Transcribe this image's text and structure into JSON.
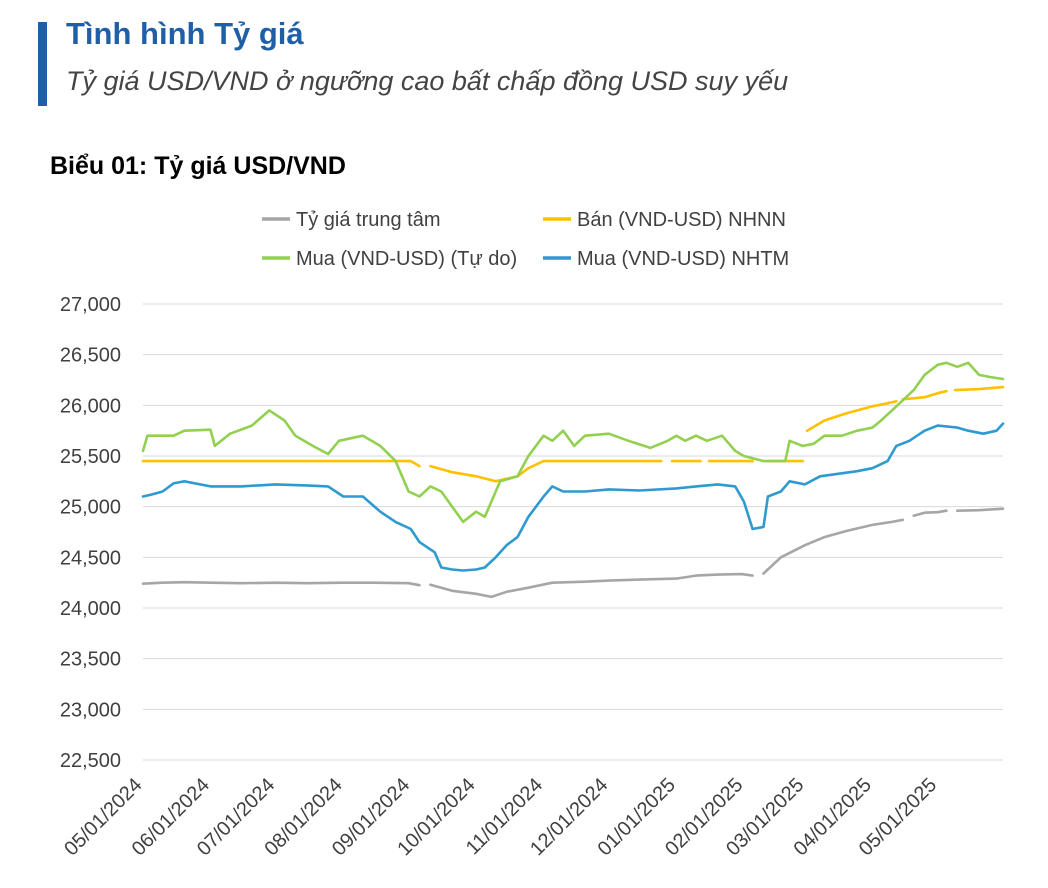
{
  "header": {
    "title": "Tình hình Tỷ giá",
    "subtitle": "Tỷ giá USD/VND ở ngưỡng cao bất chấp đồng USD suy yếu",
    "accent_color": "#1f5fa8"
  },
  "chart_data": {
    "type": "line",
    "title": "Biểu 01: Tỷ giá  USD/VND",
    "ylim": [
      22500,
      27000
    ],
    "y_ticks": [
      22500,
      23000,
      23500,
      24000,
      24500,
      25000,
      25500,
      26000,
      26500,
      27000
    ],
    "y_tick_labels": [
      "22,500",
      "23,000",
      "23,500",
      "24,000",
      "24,500",
      "25,000",
      "25,500",
      "26,000",
      "26,500",
      "27,000"
    ],
    "x_range": [
      "2024-05-01",
      "2025-05-31"
    ],
    "x_ticks": [
      "2024-05-01",
      "2024-06-01",
      "2024-07-01",
      "2024-08-01",
      "2024-09-01",
      "2024-10-01",
      "2024-11-01",
      "2024-12-01",
      "2025-01-01",
      "2025-02-01",
      "2025-03-01",
      "2025-04-01",
      "2025-05-01"
    ],
    "x_tick_labels": [
      "05/01/2024",
      "06/01/2024",
      "07/01/2024",
      "08/01/2024",
      "09/01/2024",
      "10/01/2024",
      "11/01/2024",
      "12/01/2024",
      "01/01/2025",
      "02/01/2025",
      "03/01/2025",
      "04/01/2025",
      "05/01/2025"
    ],
    "grid": "horizontal",
    "legend_position": "top",
    "series": [
      {
        "name": "Tỷ giá trung tâm",
        "color": "#a6a6a6",
        "points": [
          [
            "2024-05-01",
            24240
          ],
          [
            "2024-05-10",
            24250
          ],
          [
            "2024-05-20",
            24255
          ],
          [
            "2024-06-01",
            24250
          ],
          [
            "2024-06-15",
            24245
          ],
          [
            "2024-07-01",
            24250
          ],
          [
            "2024-07-15",
            24245
          ],
          [
            "2024-08-01",
            24250
          ],
          [
            "2024-08-15",
            24250
          ],
          [
            "2024-08-31",
            24245
          ],
          [
            "2024-09-05",
            24225
          ],
          null,
          [
            "2024-09-10",
            24230
          ],
          [
            "2024-09-20",
            24170
          ],
          [
            "2024-10-01",
            24140
          ],
          [
            "2024-10-08",
            24110
          ],
          [
            "2024-10-15",
            24160
          ],
          [
            "2024-10-25",
            24200
          ],
          [
            "2024-11-05",
            24250
          ],
          [
            "2024-11-20",
            24260
          ],
          [
            "2024-12-01",
            24270
          ],
          [
            "2024-12-15",
            24280
          ],
          [
            "2025-01-01",
            24290
          ],
          [
            "2025-01-10",
            24320
          ],
          [
            "2025-01-20",
            24330
          ],
          [
            "2025-01-31",
            24335
          ],
          [
            "2025-02-05",
            24320
          ],
          null,
          [
            "2025-02-10",
            24340
          ],
          [
            "2025-02-18",
            24500
          ],
          [
            "2025-03-01",
            24620
          ],
          [
            "2025-03-10",
            24700
          ],
          [
            "2025-03-20",
            24760
          ],
          [
            "2025-04-01",
            24820
          ],
          [
            "2025-04-10",
            24850
          ],
          [
            "2025-04-15",
            24870
          ],
          null,
          [
            "2025-04-20",
            24910
          ],
          [
            "2025-04-25",
            24940
          ],
          [
            "2025-05-01",
            24945
          ],
          [
            "2025-05-05",
            24960
          ],
          null,
          [
            "2025-05-10",
            24960
          ],
          [
            "2025-05-20",
            24965
          ],
          [
            "2025-05-31",
            24980
          ]
        ]
      },
      {
        "name": "Bán (VND-USD) NHNN",
        "color": "#ffc000",
        "points": [
          [
            "2024-05-01",
            25450
          ],
          [
            "2024-06-01",
            25450
          ],
          [
            "2024-07-01",
            25450
          ],
          [
            "2024-08-01",
            25450
          ],
          [
            "2024-09-01",
            25450
          ],
          [
            "2024-09-05",
            25400
          ],
          null,
          [
            "2024-09-10",
            25400
          ],
          [
            "2024-09-20",
            25340
          ],
          [
            "2024-10-01",
            25300
          ],
          [
            "2024-10-10",
            25250
          ],
          [
            "2024-10-20",
            25300
          ],
          [
            "2024-10-25",
            25380
          ],
          [
            "2024-11-01",
            25450
          ],
          [
            "2024-12-01",
            25450
          ],
          [
            "2024-12-25",
            25450
          ],
          null,
          [
            "2024-12-30",
            25450
          ],
          [
            "2025-01-12",
            25450
          ],
          null,
          [
            "2025-01-16",
            25450
          ],
          [
            "2025-02-05",
            25450
          ],
          null,
          [
            "2025-02-12",
            25450
          ],
          [
            "2025-02-28",
            25450
          ],
          null,
          [
            "2025-03-02",
            25750
          ],
          [
            "2025-03-10",
            25850
          ],
          [
            "2025-03-20",
            25920
          ],
          [
            "2025-04-01",
            25990
          ],
          [
            "2025-04-08",
            26020
          ],
          [
            "2025-04-12",
            26040
          ],
          null,
          [
            "2025-04-15",
            26060
          ],
          [
            "2025-04-25",
            26080
          ],
          [
            "2025-05-01",
            26120
          ],
          [
            "2025-05-05",
            26140
          ],
          null,
          [
            "2025-05-09",
            26150
          ],
          [
            "2025-05-20",
            26160
          ],
          [
            "2025-05-31",
            26180
          ]
        ]
      },
      {
        "name": "Mua (VND-USD) (Tự do)",
        "color": "#92d050",
        "points": [
          [
            "2024-05-01",
            25550
          ],
          [
            "2024-05-03",
            25700
          ],
          [
            "2024-05-15",
            25700
          ],
          [
            "2024-05-20",
            25750
          ],
          [
            "2024-06-01",
            25760
          ],
          [
            "2024-06-03",
            25600
          ],
          [
            "2024-06-10",
            25720
          ],
          [
            "2024-06-20",
            25800
          ],
          [
            "2024-06-28",
            25950
          ],
          [
            "2024-07-05",
            25850
          ],
          [
            "2024-07-10",
            25700
          ],
          [
            "2024-07-18",
            25600
          ],
          [
            "2024-07-25",
            25520
          ],
          [
            "2024-07-30",
            25650
          ],
          [
            "2024-08-10",
            25700
          ],
          [
            "2024-08-18",
            25600
          ],
          [
            "2024-08-25",
            25450
          ],
          [
            "2024-08-31",
            25150
          ],
          [
            "2024-09-05",
            25100
          ],
          [
            "2024-09-10",
            25200
          ],
          [
            "2024-09-15",
            25150
          ],
          [
            "2024-09-20",
            25000
          ],
          [
            "2024-09-25",
            24850
          ],
          [
            "2024-10-01",
            24950
          ],
          [
            "2024-10-05",
            24900
          ],
          [
            "2024-10-08",
            25050
          ],
          [
            "2024-10-12",
            25250
          ],
          [
            "2024-10-20",
            25300
          ],
          [
            "2024-10-25",
            25500
          ],
          [
            "2024-11-01",
            25700
          ],
          [
            "2024-11-05",
            25650
          ],
          [
            "2024-11-10",
            25750
          ],
          [
            "2024-11-15",
            25600
          ],
          [
            "2024-11-20",
            25700
          ],
          [
            "2024-12-01",
            25720
          ],
          [
            "2024-12-10",
            25650
          ],
          [
            "2024-12-20",
            25580
          ],
          [
            "2024-12-28",
            25650
          ],
          [
            "2025-01-01",
            25700
          ],
          [
            "2025-01-05",
            25650
          ],
          [
            "2025-01-10",
            25700
          ],
          [
            "2025-01-15",
            25650
          ],
          [
            "2025-01-22",
            25700
          ],
          [
            "2025-01-28",
            25550
          ],
          [
            "2025-02-01",
            25500
          ],
          [
            "2025-02-10",
            25450
          ],
          [
            "2025-02-20",
            25450
          ],
          [
            "2025-02-22",
            25650
          ],
          [
            "2025-02-28",
            25600
          ],
          [
            "2025-03-05",
            25620
          ],
          [
            "2025-03-10",
            25700
          ],
          [
            "2025-03-18",
            25700
          ],
          [
            "2025-03-25",
            25750
          ],
          [
            "2025-04-01",
            25780
          ],
          [
            "2025-04-05",
            25850
          ],
          [
            "2025-04-10",
            25950
          ],
          [
            "2025-04-15",
            26050
          ],
          [
            "2025-04-20",
            26150
          ],
          [
            "2025-04-25",
            26300
          ],
          [
            "2025-05-01",
            26400
          ],
          [
            "2025-05-05",
            26420
          ],
          [
            "2025-05-10",
            26380
          ],
          [
            "2025-05-15",
            26420
          ],
          [
            "2025-05-20",
            26300
          ],
          [
            "2025-05-25",
            26280
          ],
          [
            "2025-05-31",
            26260
          ]
        ]
      },
      {
        "name": "Mua (VND-USD) NHTM",
        "color": "#2e9ad0",
        "points": [
          [
            "2024-05-01",
            25100
          ],
          [
            "2024-05-05",
            25120
          ],
          [
            "2024-05-10",
            25150
          ],
          [
            "2024-05-15",
            25230
          ],
          [
            "2024-05-20",
            25250
          ],
          [
            "2024-06-01",
            25200
          ],
          [
            "2024-06-15",
            25200
          ],
          [
            "2024-07-01",
            25220
          ],
          [
            "2024-07-15",
            25210
          ],
          [
            "2024-07-25",
            25200
          ],
          [
            "2024-08-01",
            25100
          ],
          [
            "2024-08-10",
            25100
          ],
          [
            "2024-08-18",
            24950
          ],
          [
            "2024-08-25",
            24850
          ],
          [
            "2024-09-01",
            24780
          ],
          [
            "2024-09-05",
            24650
          ],
          [
            "2024-09-12",
            24550
          ],
          [
            "2024-09-15",
            24400
          ],
          [
            "2024-09-20",
            24380
          ],
          [
            "2024-09-25",
            24370
          ],
          [
            "2024-10-01",
            24380
          ],
          [
            "2024-10-05",
            24400
          ],
          [
            "2024-10-10",
            24500
          ],
          [
            "2024-10-15",
            24620
          ],
          [
            "2024-10-20",
            24700
          ],
          [
            "2024-10-25",
            24900
          ],
          [
            "2024-11-01",
            25100
          ],
          [
            "2024-11-05",
            25200
          ],
          [
            "2024-11-10",
            25150
          ],
          [
            "2024-11-20",
            25150
          ],
          [
            "2024-12-01",
            25170
          ],
          [
            "2024-12-15",
            25160
          ],
          [
            "2025-01-01",
            25180
          ],
          [
            "2025-01-10",
            25200
          ],
          [
            "2025-01-20",
            25220
          ],
          [
            "2025-01-28",
            25200
          ],
          [
            "2025-02-01",
            25050
          ],
          [
            "2025-02-05",
            24780
          ],
          [
            "2025-02-10",
            24800
          ],
          [
            "2025-02-12",
            25100
          ],
          [
            "2025-02-18",
            25150
          ],
          [
            "2025-02-22",
            25250
          ],
          [
            "2025-03-01",
            25220
          ],
          [
            "2025-03-08",
            25300
          ],
          [
            "2025-03-15",
            25320
          ],
          [
            "2025-03-25",
            25350
          ],
          [
            "2025-04-01",
            25380
          ],
          [
            "2025-04-08",
            25450
          ],
          [
            "2025-04-12",
            25600
          ],
          [
            "2025-04-18",
            25650
          ],
          [
            "2025-04-25",
            25750
          ],
          [
            "2025-05-01",
            25800
          ],
          [
            "2025-05-10",
            25780
          ],
          [
            "2025-05-15",
            25750
          ],
          [
            "2025-05-22",
            25720
          ],
          [
            "2025-05-28",
            25750
          ],
          [
            "2025-05-31",
            25820
          ]
        ]
      }
    ]
  }
}
